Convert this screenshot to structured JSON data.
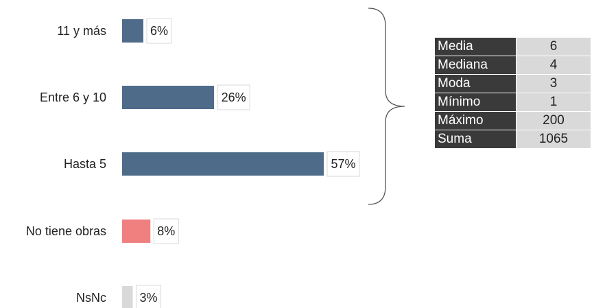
{
  "chart_data": {
    "type": "bar",
    "orientation": "horizontal",
    "categories": [
      "11 y más",
      "Entre 6 y 10",
      "Hasta 5",
      "No tiene obras",
      "NsNc"
    ],
    "values": [
      6,
      26,
      57,
      8,
      3
    ],
    "value_labels": [
      "6%",
      "26%",
      "57%",
      "8%",
      "3%"
    ],
    "bar_colors": [
      "#4f6b8a",
      "#4f6b8a",
      "#4f6b8a",
      "#f08080",
      "#d9d9d9"
    ],
    "xlim": [
      0,
      57
    ],
    "grid": false,
    "legend": "none"
  },
  "stats_table": {
    "rows": [
      {
        "label": "Media",
        "value": "6"
      },
      {
        "label": "Mediana",
        "value": "4"
      },
      {
        "label": "Moda",
        "value": "3"
      },
      {
        "label": "Mínimo",
        "value": "1"
      },
      {
        "label": "Máximo",
        "value": "200"
      },
      {
        "label": "Suma",
        "value": "1065"
      }
    ]
  }
}
